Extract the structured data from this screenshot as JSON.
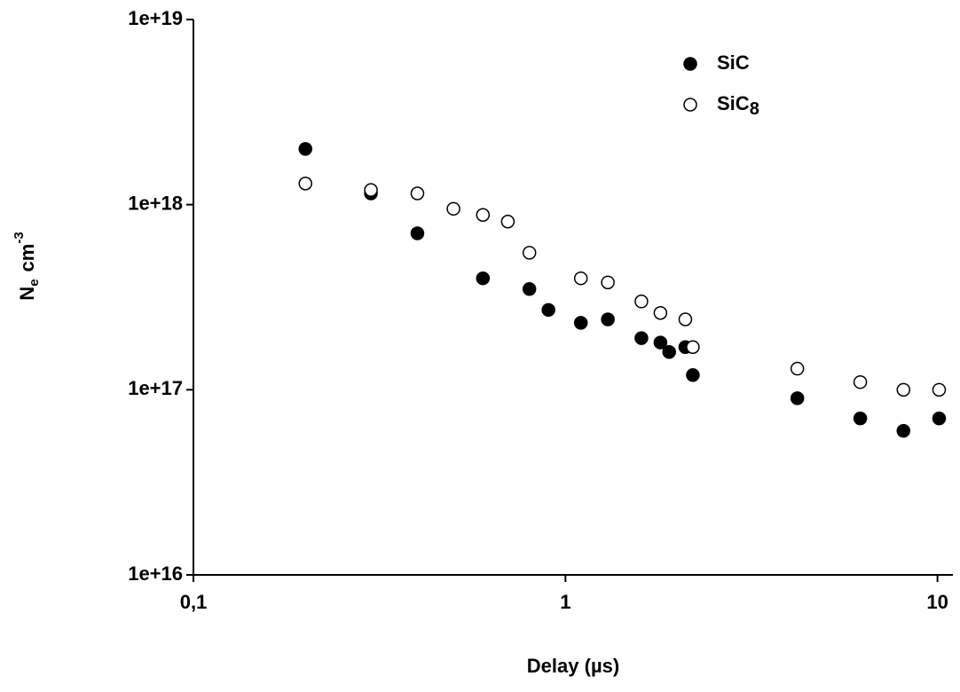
{
  "chart_data": {
    "type": "scatter",
    "xlabel": "Delay (µs)",
    "ylabel": {
      "base": "N",
      "sub": "e",
      "unit": "cm",
      "sup": "-3"
    },
    "xscale": "log",
    "yscale": "log",
    "xlim": [
      0.1,
      11
    ],
    "ylim": [
      1e+16,
      1e+19
    ],
    "xticks": [
      {
        "value": 0.1,
        "label": "0,1"
      },
      1,
      10
    ],
    "yticks": [
      {
        "value": 1e+16,
        "label": "1e+16"
      },
      {
        "value": 1e+17,
        "label": "1e+17"
      },
      {
        "value": 1e+18,
        "label": "1e+18"
      },
      {
        "value": 1e+19,
        "label": "1e+19"
      }
    ],
    "legend": "top-right",
    "series": [
      {
        "name": "SiC",
        "color": "#000000",
        "filled": true,
        "x": [
          0.2,
          0.3,
          0.4,
          0.6,
          0.8,
          0.9,
          1.1,
          1.3,
          1.6,
          1.8,
          1.9,
          2.1,
          2.2,
          4.2,
          6.2,
          8.1,
          10.1
        ],
        "values": [
          2e+18,
          1.15e+18,
          7e+17,
          4e+17,
          3.5e+17,
          2.7e+17,
          2.3e+17,
          2.4e+17,
          1.9e+17,
          1.8e+17,
          1.6e+17,
          1.7e+17,
          1.2e+17,
          9e+16,
          7e+16,
          6e+16,
          7e+16
        ]
      },
      {
        "name": "SiC8",
        "color": "#000000",
        "filled": false,
        "x": [
          0.2,
          0.3,
          0.4,
          0.5,
          0.6,
          0.7,
          0.8,
          1.1,
          1.3,
          1.6,
          1.8,
          2.1,
          2.2,
          4.2,
          6.2,
          8.1,
          10.1
        ],
        "values": [
          1.3e+18,
          1.2e+18,
          1.15e+18,
          9.5e+17,
          8.8e+17,
          8.1e+17,
          5.5e+17,
          4e+17,
          3.8e+17,
          3e+17,
          2.6e+17,
          2.4e+17,
          1.7e+17,
          1.3e+17,
          1.1e+17,
          1e+17,
          1e+17
        ]
      }
    ]
  }
}
